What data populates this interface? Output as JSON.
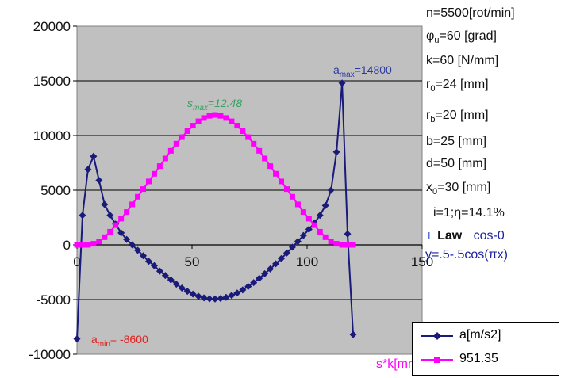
{
  "chart_data": {
    "type": "line",
    "xlim": [
      0,
      150
    ],
    "ylim": [
      -10000,
      20000
    ],
    "xticks": [
      "0",
      "50",
      "100",
      "150"
    ],
    "yticks": [
      "20000",
      "15000",
      "10000",
      "5000",
      "0",
      "-5000",
      "-10000"
    ],
    "grid": "horizontal",
    "plot_background": "#c0c0c0",
    "series": [
      {
        "name": "a[m/s2]",
        "color": "#1a1a7a",
        "marker": "diamond",
        "points": [
          [
            0,
            -8600
          ],
          [
            2.4,
            2700
          ],
          [
            4.8,
            6900
          ],
          [
            7.2,
            8100
          ],
          [
            9.6,
            5900
          ],
          [
            12,
            3700
          ],
          [
            14.4,
            2700
          ],
          [
            16.8,
            1900
          ],
          [
            19.2,
            1100
          ],
          [
            21.6,
            500
          ],
          [
            24,
            0
          ],
          [
            26.4,
            -500
          ],
          [
            28.8,
            -1000
          ],
          [
            31.2,
            -1500
          ],
          [
            33.6,
            -1900
          ],
          [
            36,
            -2400
          ],
          [
            38.4,
            -2800
          ],
          [
            40.8,
            -3200
          ],
          [
            43.2,
            -3600
          ],
          [
            45.6,
            -3950
          ],
          [
            48,
            -4250
          ],
          [
            50.4,
            -4500
          ],
          [
            52.8,
            -4700
          ],
          [
            55.2,
            -4850
          ],
          [
            57.6,
            -4930
          ],
          [
            60,
            -4950
          ],
          [
            62.4,
            -4900
          ],
          [
            64.8,
            -4800
          ],
          [
            67.2,
            -4620
          ],
          [
            69.6,
            -4400
          ],
          [
            72,
            -4120
          ],
          [
            74.4,
            -3800
          ],
          [
            76.8,
            -3450
          ],
          [
            79.2,
            -3060
          ],
          [
            81.6,
            -2640
          ],
          [
            84,
            -2200
          ],
          [
            86.4,
            -1730
          ],
          [
            88.8,
            -1250
          ],
          [
            91.2,
            -740
          ],
          [
            93.6,
            -210
          ],
          [
            96,
            320
          ],
          [
            98.4,
            860
          ],
          [
            100.8,
            1420
          ],
          [
            103.2,
            2000
          ],
          [
            105.6,
            2700
          ],
          [
            108,
            3600
          ],
          [
            110.4,
            5000
          ],
          [
            112.8,
            8500
          ],
          [
            115.2,
            14800
          ],
          [
            117.6,
            1000
          ],
          [
            120,
            -8200
          ]
        ]
      },
      {
        "name": "951.35",
        "color": "#ff00ff",
        "marker": "square",
        "points": [
          [
            0,
            0
          ],
          [
            2.4,
            0
          ],
          [
            4.8,
            0
          ],
          [
            7.2,
            100
          ],
          [
            9.6,
            300
          ],
          [
            12,
            700
          ],
          [
            14.4,
            1200
          ],
          [
            16.8,
            1800
          ],
          [
            19.2,
            2400
          ],
          [
            21.6,
            3000
          ],
          [
            24,
            3700
          ],
          [
            26.4,
            4400
          ],
          [
            28.8,
            5100
          ],
          [
            31.2,
            5800
          ],
          [
            33.6,
            6500
          ],
          [
            36,
            7200
          ],
          [
            38.4,
            7900
          ],
          [
            40.8,
            8600
          ],
          [
            43.2,
            9250
          ],
          [
            45.6,
            9850
          ],
          [
            48,
            10400
          ],
          [
            50.4,
            10900
          ],
          [
            52.8,
            11300
          ],
          [
            55.2,
            11600
          ],
          [
            57.6,
            11800
          ],
          [
            60,
            11880
          ],
          [
            62.4,
            11800
          ],
          [
            64.8,
            11600
          ],
          [
            67.2,
            11300
          ],
          [
            69.6,
            10900
          ],
          [
            72,
            10400
          ],
          [
            74.4,
            9850
          ],
          [
            76.8,
            9250
          ],
          [
            79.2,
            8600
          ],
          [
            81.6,
            7900
          ],
          [
            84,
            7200
          ],
          [
            86.4,
            6500
          ],
          [
            88.8,
            5800
          ],
          [
            91.2,
            5100
          ],
          [
            93.6,
            4400
          ],
          [
            96,
            3700
          ],
          [
            98.4,
            3000
          ],
          [
            100.8,
            2400
          ],
          [
            103.2,
            1800
          ],
          [
            105.6,
            1200
          ],
          [
            108,
            700
          ],
          [
            110.4,
            300
          ],
          [
            112.8,
            100
          ],
          [
            115.2,
            0
          ],
          [
            117.6,
            0
          ],
          [
            120,
            0
          ]
        ]
      }
    ],
    "legend_placement": "bottom-right"
  },
  "annotations": {
    "amax_label": "a",
    "amax_sub": "max",
    "amax_value": "=14800",
    "smax_label": "s",
    "smax_sub": "max",
    "smax_value": "=12.48",
    "amin_label": "a",
    "amin_sub": "min",
    "amin_value": "= -8600",
    "colors": {
      "amax": "#2b3aa0",
      "smax": "#3aa060",
      "amin": "#e02020"
    }
  },
  "params": {
    "n": "n=5500[rot/min]",
    "phi_sym": "φ",
    "phi_sub": "u",
    "phi_rest": "=60 [grad]",
    "k": "k=60 [N/mm]",
    "r0_main": "r",
    "r0_sub": "0",
    "r0_rest": "=24 [mm]",
    "rb_main": "r",
    "rb_sub": "b",
    "rb_rest": "=20 [mm]",
    "b": "b=25 [mm]",
    "d": "d=50 [mm]",
    "x0_main": "x",
    "x0_sub": "0",
    "x0_rest": "=30 [mm]",
    "i_eta": "i=1;η=14.1%",
    "law_bar": "I",
    "law_label": "Law",
    "law_value": "cos-0",
    "law_formula": "y=.5-.5cos(πx)"
  },
  "legend_extra": {
    "prefix": "s*k[mm] k="
  }
}
